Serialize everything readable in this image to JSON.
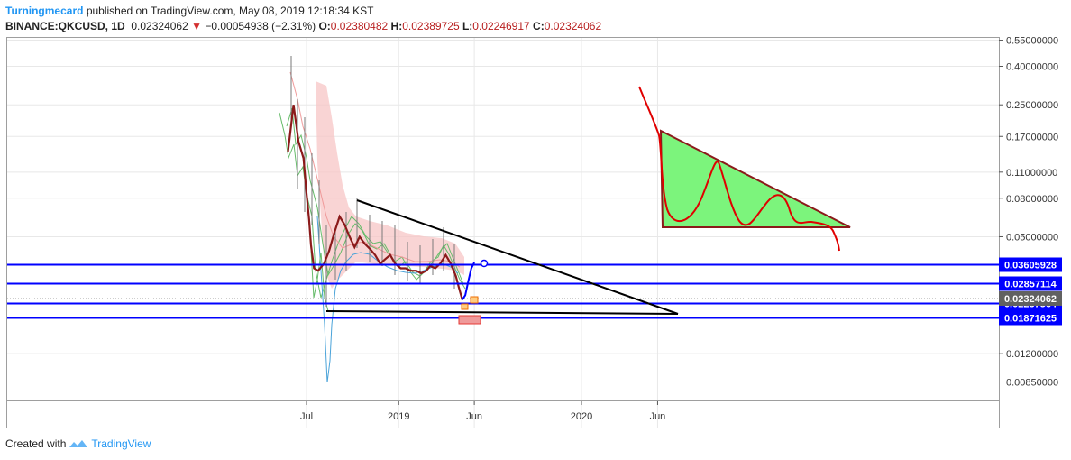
{
  "header": {
    "author": "Turningmecard",
    "published_text": "published on TradingView.com, May 08, 2019 12:18:34 KST",
    "symbol": "BINANCE:QKCUSD, 1D",
    "last_price": "0.02324062",
    "change_arrow": "▼",
    "change": "−0.00054938 (−2.31%)",
    "open_label": "O:",
    "open": "0.02380482",
    "high_label": "H:",
    "high": "0.02389725",
    "low_label": "L:",
    "low": "0.02246917",
    "close_label": "C:",
    "close": "0.02324062"
  },
  "footer": {
    "created_with": "Created with",
    "brand": "TradingView"
  },
  "colors": {
    "horizontal_line": "#0000ff",
    "price_badge": "#0000ff",
    "last_price_badge": "#616161",
    "trendline": "#000000",
    "triangle_fill": "#7cf47c",
    "triangle_stroke": "#8b1a1a",
    "projection": "#e00000",
    "forecast": "#0000ff",
    "candle_main": "#8b1a1a",
    "cloud": "#f7c6c6",
    "ichimoku_green": "#66bb6a",
    "ichimoku_blue": "#4aa3d9",
    "grid": "#e8e8e8"
  },
  "chart_data": {
    "type": "line",
    "title": "",
    "y_scale": "log",
    "y_ticks": [
      "0.55000000",
      "0.40000000",
      "0.25000000",
      "0.17000000",
      "0.11000000",
      "0.08000000",
      "0.05000000",
      "0.01200000",
      "0.00850000"
    ],
    "x_ticks": [
      "Jul",
      "2019",
      "Jun",
      "2020",
      "Jun"
    ],
    "horizontal_levels": [
      0.03605928,
      0.02857114,
      0.02237564,
      0.01871625
    ],
    "level_labels": [
      "0.03605928",
      "0.02857114",
      "0.02237564",
      "0.01871625"
    ],
    "last_price_label": "0.02324062",
    "series": [
      {
        "name": "",
        "x": [
          "2018-05-25",
          "2018-06-05",
          "2018-06-15",
          "2018-06-25",
          "2018-07-01",
          "2018-07-06",
          "2018-07-10",
          "2018-07-16",
          "2018-07-24",
          "2018-08-05",
          "2018-08-15",
          "2018-08-25",
          "2018-09-05",
          "2018-09-15",
          "2018-09-25",
          "2018-10-05",
          "2018-10-15",
          "2018-10-25",
          "2018-11-05",
          "2018-11-15",
          "2018-11-25",
          "2018-12-05",
          "2018-12-15",
          "2018-12-25",
          "2019-01-05",
          "2019-01-15",
          "2019-01-25",
          "2019-02-05",
          "2019-02-15",
          "2019-02-25",
          "2019-03-05",
          "2019-03-15",
          "2019-03-25",
          "2019-04-05",
          "2019-04-15",
          "2019-04-25",
          "2019-05-01",
          "2019-05-08"
        ],
        "values": [
          0.14,
          0.25,
          0.16,
          0.13,
          0.085,
          0.062,
          0.045,
          0.034,
          0.033,
          0.036,
          0.042,
          0.052,
          0.064,
          0.058,
          0.05,
          0.044,
          0.05,
          0.046,
          0.043,
          0.04,
          0.036,
          0.038,
          0.04,
          0.036,
          0.034,
          0.034,
          0.033,
          0.033,
          0.032,
          0.033,
          0.035,
          0.034,
          0.036,
          0.04,
          0.036,
          0.031,
          0.027,
          0.0232
        ]
      },
      {
        "name": "",
        "x": [
          "2019-05-08",
          "2019-05-14",
          "2019-05-20",
          "2019-05-26",
          "2019-06-01"
        ],
        "values": [
          0.0232,
          0.0245,
          0.029,
          0.034,
          0.0365
        ]
      }
    ],
    "annotations": [
      "descending triangle",
      "projected descending triangle with decline"
    ]
  }
}
